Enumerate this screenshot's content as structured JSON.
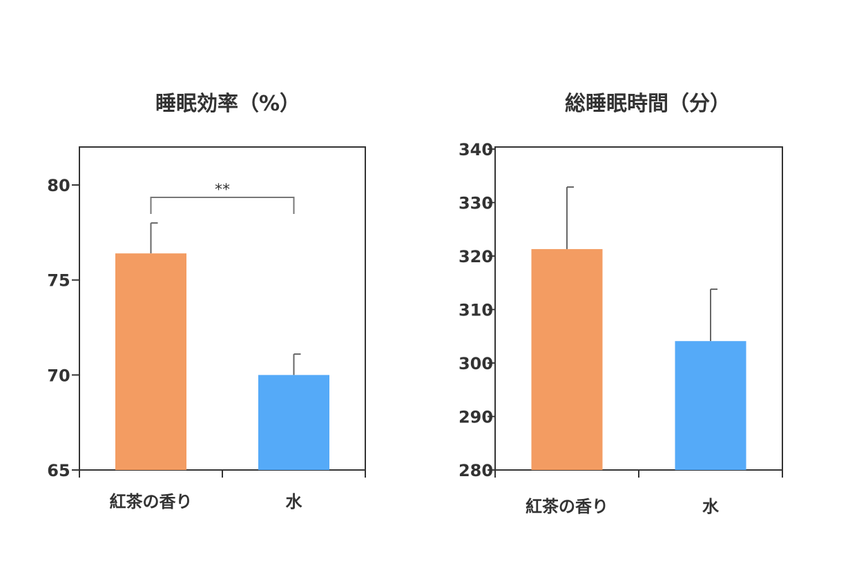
{
  "chart_data": [
    {
      "type": "bar",
      "title": "睡眠効率（%）",
      "categories": [
        "紅茶の香り",
        "水"
      ],
      "values": [
        76.4,
        70.0
      ],
      "error_upper": [
        78.0,
        71.1
      ],
      "colors": [
        "#F39C62",
        "#55AAF8"
      ],
      "ylim": [
        65,
        82
      ],
      "yticks": [
        "65",
        "70",
        "75",
        "80"
      ],
      "significance": {
        "label": "**",
        "between": [
          0,
          1
        ]
      },
      "grid": false
    },
    {
      "type": "bar",
      "title": "総睡眠時間（分）",
      "categories": [
        "紅茶の香り",
        "水"
      ],
      "values": [
        321.3,
        304.1
      ],
      "error_upper": [
        332.9,
        313.8
      ],
      "colors": [
        "#F39C62",
        "#55AAF8"
      ],
      "ylim": [
        280,
        340
      ],
      "yticks": [
        "280",
        "290",
        "300",
        "310",
        "320",
        "330",
        "340"
      ],
      "grid": false
    }
  ]
}
